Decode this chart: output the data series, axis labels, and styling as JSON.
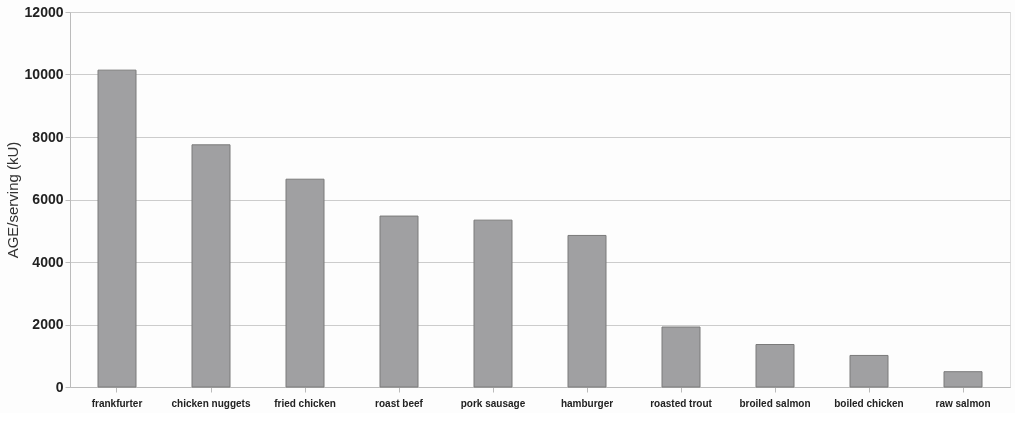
{
  "chart_data": {
    "type": "bar",
    "ylabel": "AGE/serving (kU)",
    "categories": [
      "frankfurter",
      "chicken nuggets",
      "fried chicken",
      "roast beef",
      "pork sausage",
      "hamburger",
      "roasted trout",
      "broiled salmon",
      "boiled chicken",
      "raw salmon"
    ],
    "values": [
      10140,
      7750,
      6650,
      5470,
      5340,
      4850,
      1920,
      1360,
      1010,
      490
    ],
    "color": "#a0a0a2",
    "ylim": [
      0,
      12000
    ],
    "yticks": [
      0,
      2000,
      4000,
      6000,
      8000,
      10000,
      12000
    ],
    "grid": "y"
  }
}
